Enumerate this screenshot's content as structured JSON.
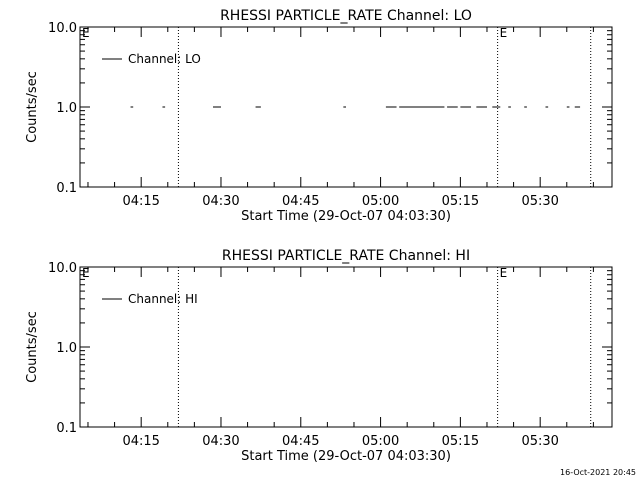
{
  "footer": {
    "timestamp": "16-Oct-2021 20:45"
  },
  "chart_data": [
    {
      "type": "line",
      "title": "RHESSI PARTICLE_RATE Channel: LO",
      "xlabel": "Start Time (29-Oct-07 04:03:30)",
      "ylabel": "Counts/sec",
      "yscale": "log",
      "ylim": [
        0.1,
        10.0
      ],
      "y_ticks": [
        "0.1",
        "1.0",
        "10.0"
      ],
      "x_ticks": [
        "04:15",
        "04:30",
        "04:45",
        "05:00",
        "05:15",
        "05:30"
      ],
      "xlim": [
        "04:03:30",
        "05:43:30"
      ],
      "legend": {
        "position": "top-left",
        "label": "Channel: LO"
      },
      "markers": [
        {
          "time": "04:22:00",
          "label": ""
        },
        {
          "time": "05:22:00",
          "label": "E"
        },
        {
          "time": "05:39:30",
          "label": ""
        }
      ],
      "corner_label": "E",
      "series": [
        {
          "name": "Channel: LO",
          "segments": [
            {
              "start": "04:13:00",
              "end": "04:13:30",
              "value": 1.0
            },
            {
              "start": "04:19:00",
              "end": "04:19:30",
              "value": 1.0
            },
            {
              "start": "04:28:30",
              "end": "04:30:00",
              "value": 1.0
            },
            {
              "start": "04:36:30",
              "end": "04:37:30",
              "value": 1.0
            },
            {
              "start": "04:53:00",
              "end": "04:53:30",
              "value": 1.0
            },
            {
              "start": "05:01:00",
              "end": "05:03:00",
              "value": 1.0
            },
            {
              "start": "05:03:30",
              "end": "05:12:00",
              "value": 1.0
            },
            {
              "start": "05:12:30",
              "end": "05:14:30",
              "value": 1.0
            },
            {
              "start": "05:15:00",
              "end": "05:17:00",
              "value": 1.0
            },
            {
              "start": "05:18:00",
              "end": "05:20:00",
              "value": 1.0
            },
            {
              "start": "05:21:00",
              "end": "05:22:30",
              "value": 1.0
            },
            {
              "start": "05:24:00",
              "end": "05:24:30",
              "value": 1.0
            },
            {
              "start": "05:27:00",
              "end": "05:27:30",
              "value": 1.0
            },
            {
              "start": "05:31:00",
              "end": "05:31:30",
              "value": 1.0
            },
            {
              "start": "05:35:00",
              "end": "05:35:30",
              "value": 1.0
            },
            {
              "start": "05:36:30",
              "end": "05:37:30",
              "value": 1.0
            }
          ]
        }
      ]
    },
    {
      "type": "line",
      "title": "RHESSI PARTICLE_RATE Channel: HI",
      "xlabel": "Start Time (29-Oct-07 04:03:30)",
      "ylabel": "Counts/sec",
      "yscale": "log",
      "ylim": [
        0.1,
        10.0
      ],
      "y_ticks": [
        "0.1",
        "1.0",
        "10.0"
      ],
      "x_ticks": [
        "04:15",
        "04:30",
        "04:45",
        "05:00",
        "05:15",
        "05:30"
      ],
      "xlim": [
        "04:03:30",
        "05:43:30"
      ],
      "legend": {
        "position": "top-left",
        "label": "Channel: HI"
      },
      "markers": [
        {
          "time": "04:22:00",
          "label": ""
        },
        {
          "time": "05:22:00",
          "label": "E"
        },
        {
          "time": "05:39:30",
          "label": ""
        }
      ],
      "corner_label": "E",
      "series": [
        {
          "name": "Channel: HI",
          "segments": []
        }
      ]
    }
  ]
}
